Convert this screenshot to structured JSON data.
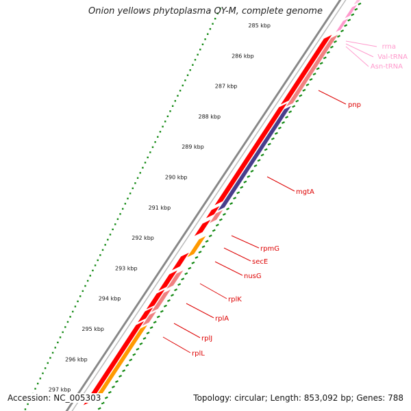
{
  "title": "Onion yellows phytoplasma OY-M, complete genome",
  "accession": "Accession: NC_005303",
  "summary": "Topology: circular; Length: 853,092 bp; Genes: 788",
  "colors": {
    "cds_forward": "#ff0000",
    "cds_reverse": "#f08080",
    "orange_gene": "#ff9900",
    "blue_gene": "#483d8b",
    "rna": "#ff99cc",
    "backbone": "#888888",
    "gc_ticks": "#118811",
    "label_line": "#dd0000"
  },
  "ruler": [
    {
      "label": "285 kbp"
    },
    {
      "label": "286 kbp"
    },
    {
      "label": "287 kbp"
    },
    {
      "label": "288 kbp"
    },
    {
      "label": "289 kbp"
    },
    {
      "label": "290 kbp"
    },
    {
      "label": "291 kbp"
    },
    {
      "label": "292 kbp"
    },
    {
      "label": "293 kbp"
    },
    {
      "label": "294 kbp"
    },
    {
      "label": "295 kbp"
    },
    {
      "label": "296 kbp"
    },
    {
      "label": "297 kbp"
    }
  ],
  "gene_labels": [
    {
      "text": "rrna",
      "type": "rna"
    },
    {
      "text": "Val-tRNA",
      "type": "rna"
    },
    {
      "text": "Asn-tRNA",
      "type": "rna"
    },
    {
      "text": "pnp",
      "type": "cds"
    },
    {
      "text": "mgtA",
      "type": "cds"
    },
    {
      "text": "rpmG",
      "type": "cds"
    },
    {
      "text": "secE",
      "type": "cds"
    },
    {
      "text": "nusG",
      "type": "cds"
    },
    {
      "text": "rplK",
      "type": "cds"
    },
    {
      "text": "rplA",
      "type": "cds"
    },
    {
      "text": "rplJ",
      "type": "cds"
    },
    {
      "text": "rplL",
      "type": "cds"
    }
  ]
}
